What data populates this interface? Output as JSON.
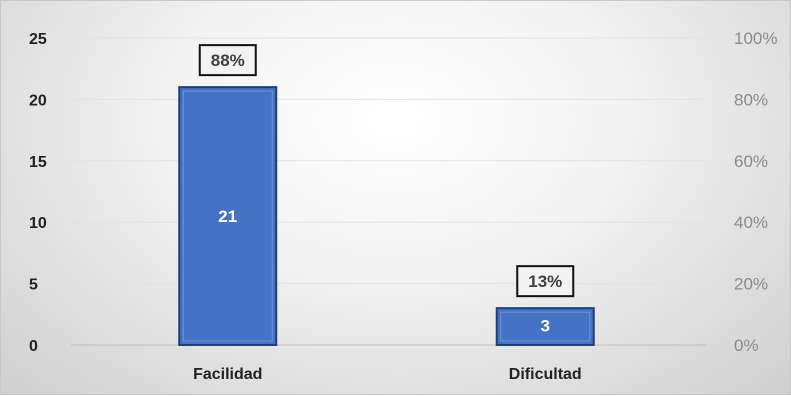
{
  "chart_data": {
    "type": "bar",
    "categories": [
      "Facilidad",
      "Dificultad"
    ],
    "values": [
      21,
      3
    ],
    "percent_labels": [
      "88%",
      "13%"
    ],
    "ylim": [
      0,
      25
    ],
    "yticks": [
      "0",
      "5",
      "10",
      "15",
      "20",
      "25"
    ],
    "y2lim": [
      0,
      100
    ],
    "y2ticks": [
      "0%",
      "20%",
      "40%",
      "60%",
      "80%",
      "100%"
    ],
    "grid": true,
    "legend": "none",
    "title": "",
    "xlabel": "",
    "ylabel": "",
    "bar_color": "#4472C4",
    "bar_edge_color": "#1F3F7A"
  }
}
